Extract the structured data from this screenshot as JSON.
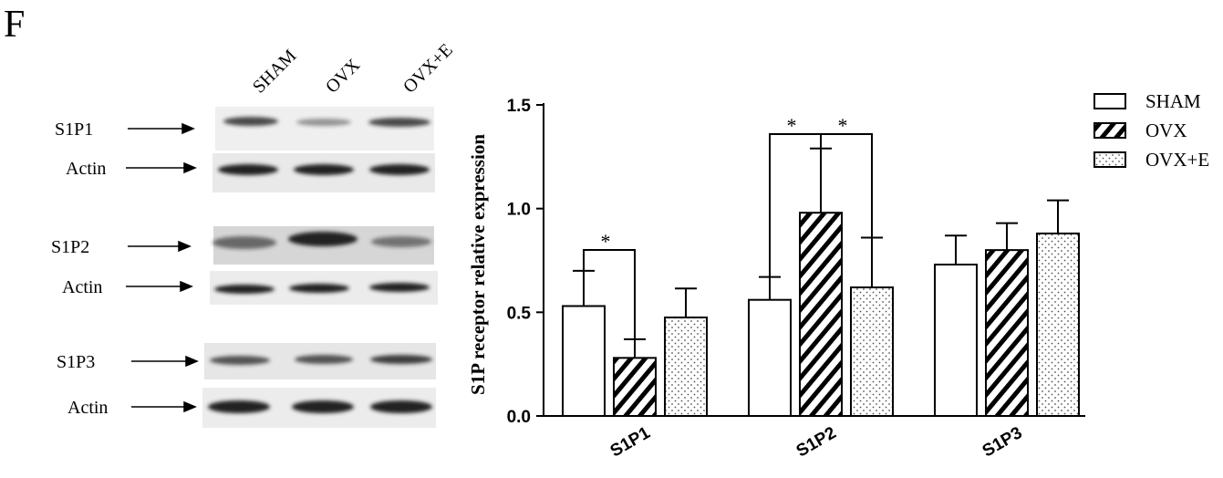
{
  "panel_label": "F",
  "blot": {
    "lanes": [
      "SHAM",
      "OVX",
      "OVX+E"
    ],
    "rows": [
      "S1P1",
      "Actin",
      "S1P2",
      "Actin",
      "S1P3",
      "Actin"
    ]
  },
  "chart_data": {
    "type": "bar",
    "ylabel": "S1P receptor relative expression",
    "categories": [
      "S1P1",
      "S1P2",
      "S1P3"
    ],
    "series": [
      {
        "name": "SHAM",
        "color": "#ffffff",
        "pattern": "none",
        "values": [
          0.53,
          0.56,
          0.73
        ],
        "errors": [
          0.17,
          0.11,
          0.14
        ]
      },
      {
        "name": "OVX",
        "color": "#ffffff",
        "pattern": "hatch",
        "values": [
          0.28,
          0.98,
          0.8
        ],
        "errors": [
          0.09,
          0.31,
          0.13
        ]
      },
      {
        "name": "OVX+E",
        "color": "#ffffff",
        "pattern": "dots",
        "values": [
          0.475,
          0.62,
          0.88
        ],
        "errors": [
          0.14,
          0.24,
          0.16
        ]
      }
    ],
    "ylim": [
      0,
      1.5
    ],
    "yticks": [
      {
        "value": 0,
        "label": "0.0"
      },
      0.5,
      {
        "value": 1,
        "label": "1.0"
      },
      1.5
    ],
    "annotations": [
      {
        "text": "*"
      },
      {
        "text": "*"
      },
      {
        "text": "*"
      }
    ],
    "legend": "upper right"
  }
}
